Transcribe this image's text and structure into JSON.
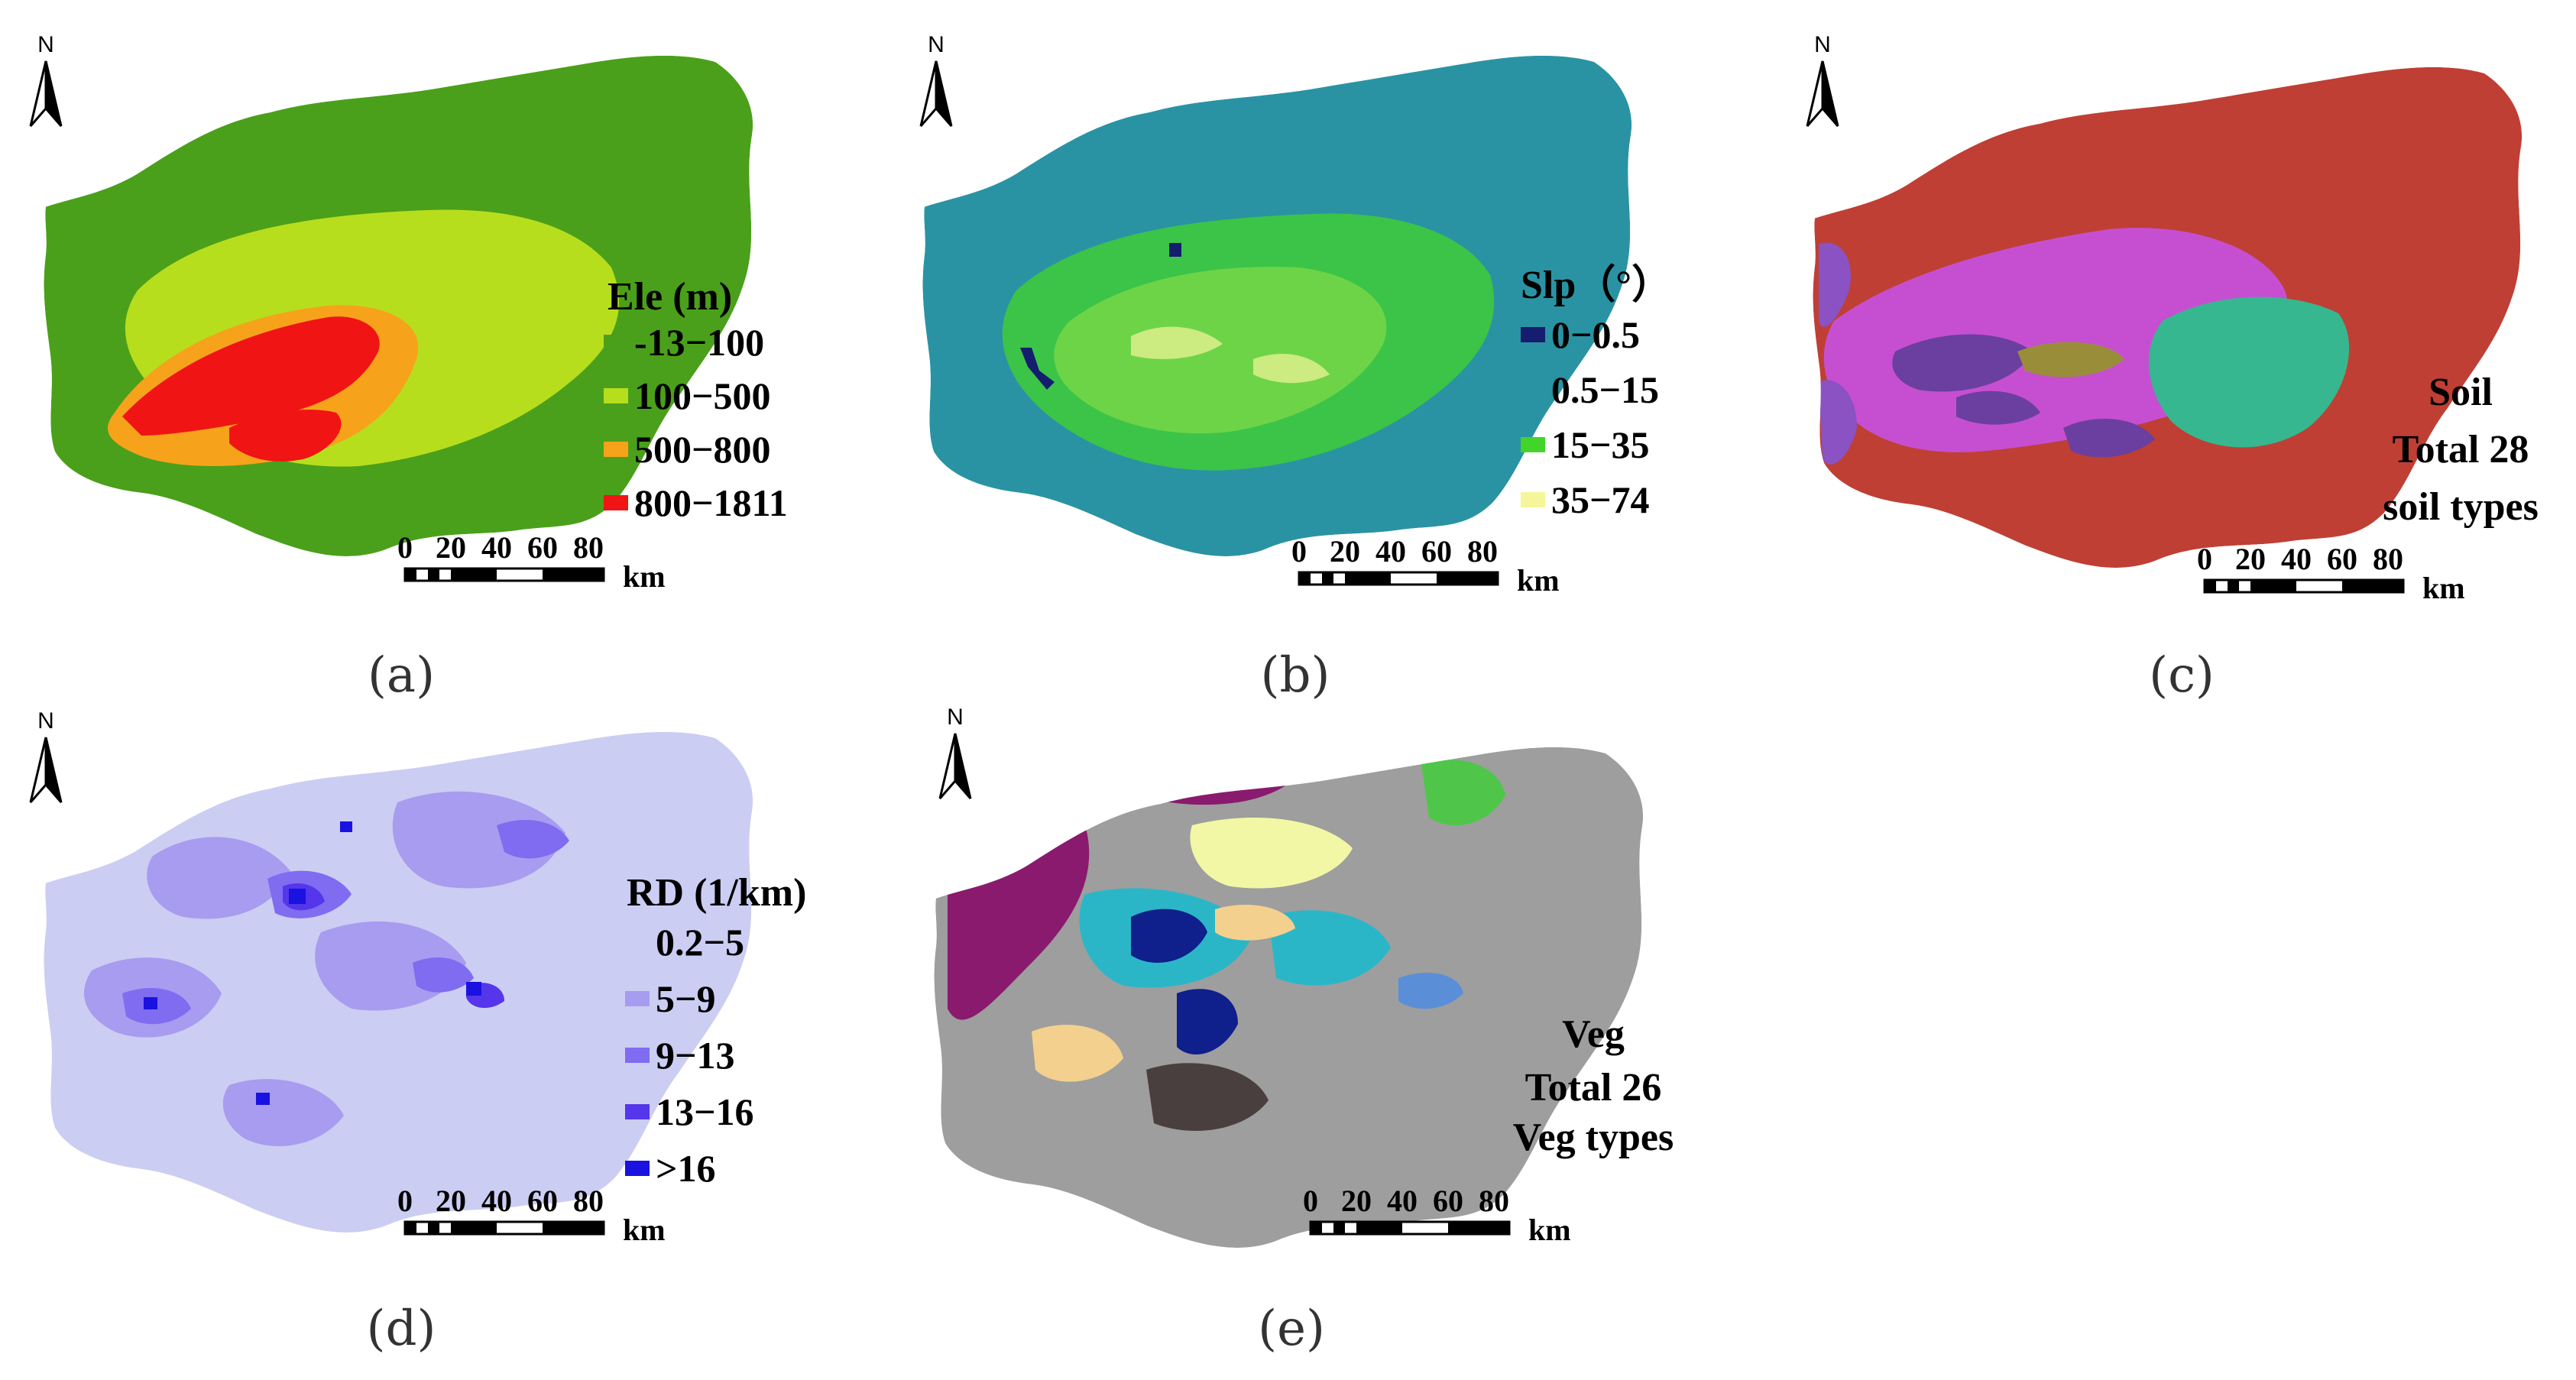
{
  "north_label": "N",
  "scale": {
    "ticks": [
      "0",
      "20",
      "40",
      "60",
      "80"
    ],
    "unit": "km"
  },
  "panels": [
    {
      "label": "(a)",
      "legend_title": "Ele (m)",
      "classes": [
        {
          "label": "-13−100",
          "color": "#4aa01a"
        },
        {
          "label": "100−500",
          "color": "#b7de1d"
        },
        {
          "label": "500−800",
          "color": "#f7a21b"
        },
        {
          "label": "800−1811",
          "color": "#f01414"
        }
      ]
    },
    {
      "label": "(b)",
      "legend_title": "Slp（°）",
      "classes": [
        {
          "label": "0−0.5",
          "color": "#141d6e"
        },
        {
          "label": "0.5−15",
          "color": "#2a93a3"
        },
        {
          "label": "15−35",
          "color": "#42d42a"
        },
        {
          "label": "35−74",
          "color": "#f5f59a"
        }
      ]
    },
    {
      "label": "(c)",
      "note_title": "Soil",
      "note_lines": [
        "Total 28",
        "soil types"
      ],
      "palette": [
        "#bf3f34",
        "#c64fd1",
        "#36b78f",
        "#6a3fa0",
        "#9a8d3a",
        "#8a52c2"
      ]
    },
    {
      "label": "(d)",
      "legend_title": "RD (1/km)",
      "classes": [
        {
          "label": "0.2−5",
          "color": "#cccdf2"
        },
        {
          "label": "5−9",
          "color": "#a79cf0"
        },
        {
          "label": "9−13",
          "color": "#7f6cf0"
        },
        {
          "label": "13−16",
          "color": "#5536ea"
        },
        {
          "label": ">16",
          "color": "#1a12e0"
        }
      ]
    },
    {
      "label": "(e)",
      "note_title": "Veg",
      "note_lines": [
        "Total 26",
        "Veg types"
      ],
      "palette": [
        "#9e9e9e",
        "#8a1a6e",
        "#4fc64a",
        "#2bb6c8",
        "#0f1f8c",
        "#f4d08e",
        "#f2f7a5",
        "#4a3f3f",
        "#5a8fd8",
        "#6e2a2a"
      ]
    }
  ]
}
